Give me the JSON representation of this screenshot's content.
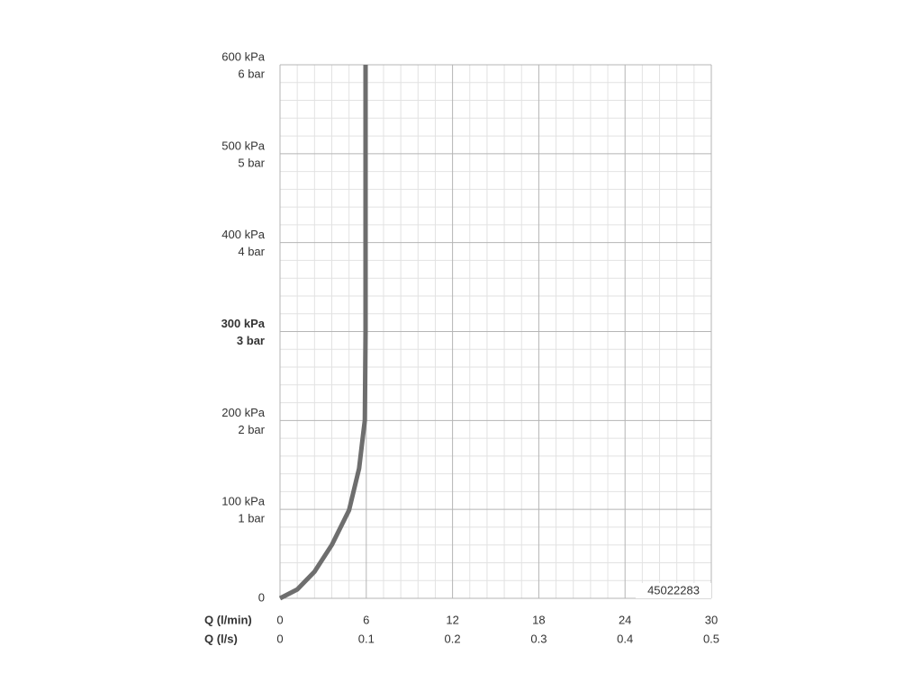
{
  "chart_data": {
    "type": "line",
    "xlabel": "Q (l/min)",
    "x2label": "Q (l/s)",
    "xlim": [
      0,
      30
    ],
    "xticks": [
      0,
      6,
      12,
      18,
      24,
      30
    ],
    "x2lim": [
      0,
      0.5
    ],
    "x2ticks": [
      0,
      0.1,
      0.2,
      0.3,
      0.4,
      0.5
    ],
    "ylim": [
      0,
      600
    ],
    "yticks": [
      0,
      {
        "value": 100,
        "label": "100 kPa"
      },
      {
        "value": 200,
        "label": "200 kPa"
      },
      {
        "value": 300,
        "label": "300 kPa"
      },
      {
        "value": 400,
        "label": "400 kPa"
      },
      {
        "value": 500,
        "label": "500 kPa"
      },
      {
        "value": 600,
        "label": "600 kPa"
      }
    ],
    "ytick_secondary_labels": [
      null,
      "1 bar",
      "2 bar",
      "3 bar",
      "4 bar",
      "5 bar",
      "6 bar"
    ],
    "bold_ytick": 300,
    "grid": true,
    "minor_divisions": 5,
    "annotation": "45022283",
    "series": [
      {
        "color": "#6e6e6e",
        "x": [
          0,
          1.2,
          2.4,
          3.6,
          4.8,
          5.5,
          5.8,
          5.9,
          5.95,
          5.95
        ],
        "values": [
          0,
          10,
          30,
          60,
          99,
          146,
          187,
          200,
          300,
          600
        ]
      }
    ]
  }
}
